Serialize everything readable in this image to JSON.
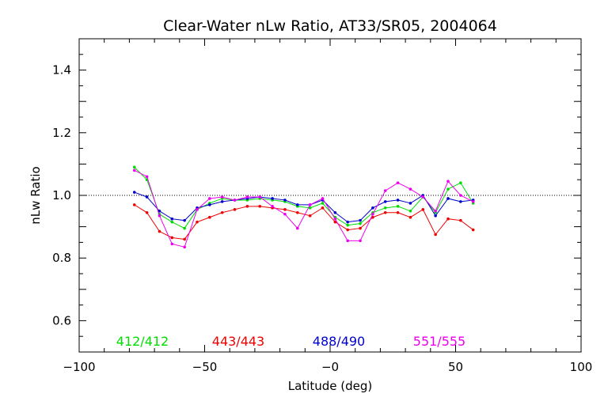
{
  "chart_data": {
    "type": "line",
    "title": "Clear-Water nLw Ratio, AT33/SR05, 2004064",
    "xlabel": "Latitude (deg)",
    "ylabel": "nLw Ratio",
    "xlim": [
      -100,
      100
    ],
    "ylim": [
      0.5,
      1.5
    ],
    "xticks": [
      -100,
      -50,
      0,
      50,
      100
    ],
    "xtick_labels": [
      "−100",
      "−50",
      "−0",
      "50",
      "100"
    ],
    "yticks": [
      0.6,
      0.8,
      1.0,
      1.2,
      1.4
    ],
    "ytick_labels": [
      "0.6",
      "0.8",
      "1.0",
      "1.2",
      "1.4"
    ],
    "reference_line": 1.0,
    "grid": false,
    "legend_position": "bottom",
    "x": [
      -78,
      -73,
      -68,
      -63,
      -58,
      -53,
      -48,
      -43,
      -38,
      -33,
      -28,
      -23,
      -18,
      -13,
      -8,
      -3,
      2,
      7,
      12,
      17,
      22,
      27,
      32,
      37,
      42,
      47,
      52,
      57
    ],
    "series": [
      {
        "name": "412/412",
        "color": "#00dd00",
        "values": [
          1.09,
          1.05,
          0.94,
          0.915,
          0.895,
          0.955,
          0.975,
          0.99,
          0.985,
          0.985,
          0.99,
          0.985,
          0.98,
          0.965,
          0.96,
          0.975,
          0.93,
          0.905,
          0.91,
          0.945,
          0.96,
          0.965,
          0.95,
          0.995,
          0.945,
          1.02,
          1.04,
          0.975
        ]
      },
      {
        "name": "443/443",
        "color": "#ee0000",
        "values": [
          0.97,
          0.945,
          0.885,
          0.865,
          0.86,
          0.915,
          0.93,
          0.945,
          0.955,
          0.965,
          0.965,
          0.96,
          0.955,
          0.945,
          0.935,
          0.96,
          0.915,
          0.89,
          0.895,
          0.93,
          0.945,
          0.945,
          0.93,
          0.955,
          0.875,
          0.925,
          0.92,
          0.89
        ]
      },
      {
        "name": "488/490",
        "color": "#0000cc",
        "values": [
          1.01,
          0.995,
          0.95,
          0.925,
          0.92,
          0.96,
          0.97,
          0.98,
          0.985,
          0.99,
          0.995,
          0.99,
          0.985,
          0.97,
          0.97,
          0.985,
          0.945,
          0.915,
          0.92,
          0.96,
          0.98,
          0.985,
          0.975,
          1.0,
          0.935,
          0.99,
          0.98,
          0.985
        ]
      },
      {
        "name": "551/555",
        "color": "#ee00ee",
        "values": [
          1.08,
          1.06,
          0.935,
          0.845,
          0.835,
          0.955,
          0.99,
          0.995,
          0.985,
          0.995,
          0.995,
          0.965,
          0.94,
          0.895,
          0.97,
          0.99,
          0.925,
          0.855,
          0.855,
          0.94,
          1.015,
          1.04,
          1.02,
          0.995,
          0.95,
          1.045,
          1.0,
          0.98
        ]
      }
    ]
  }
}
